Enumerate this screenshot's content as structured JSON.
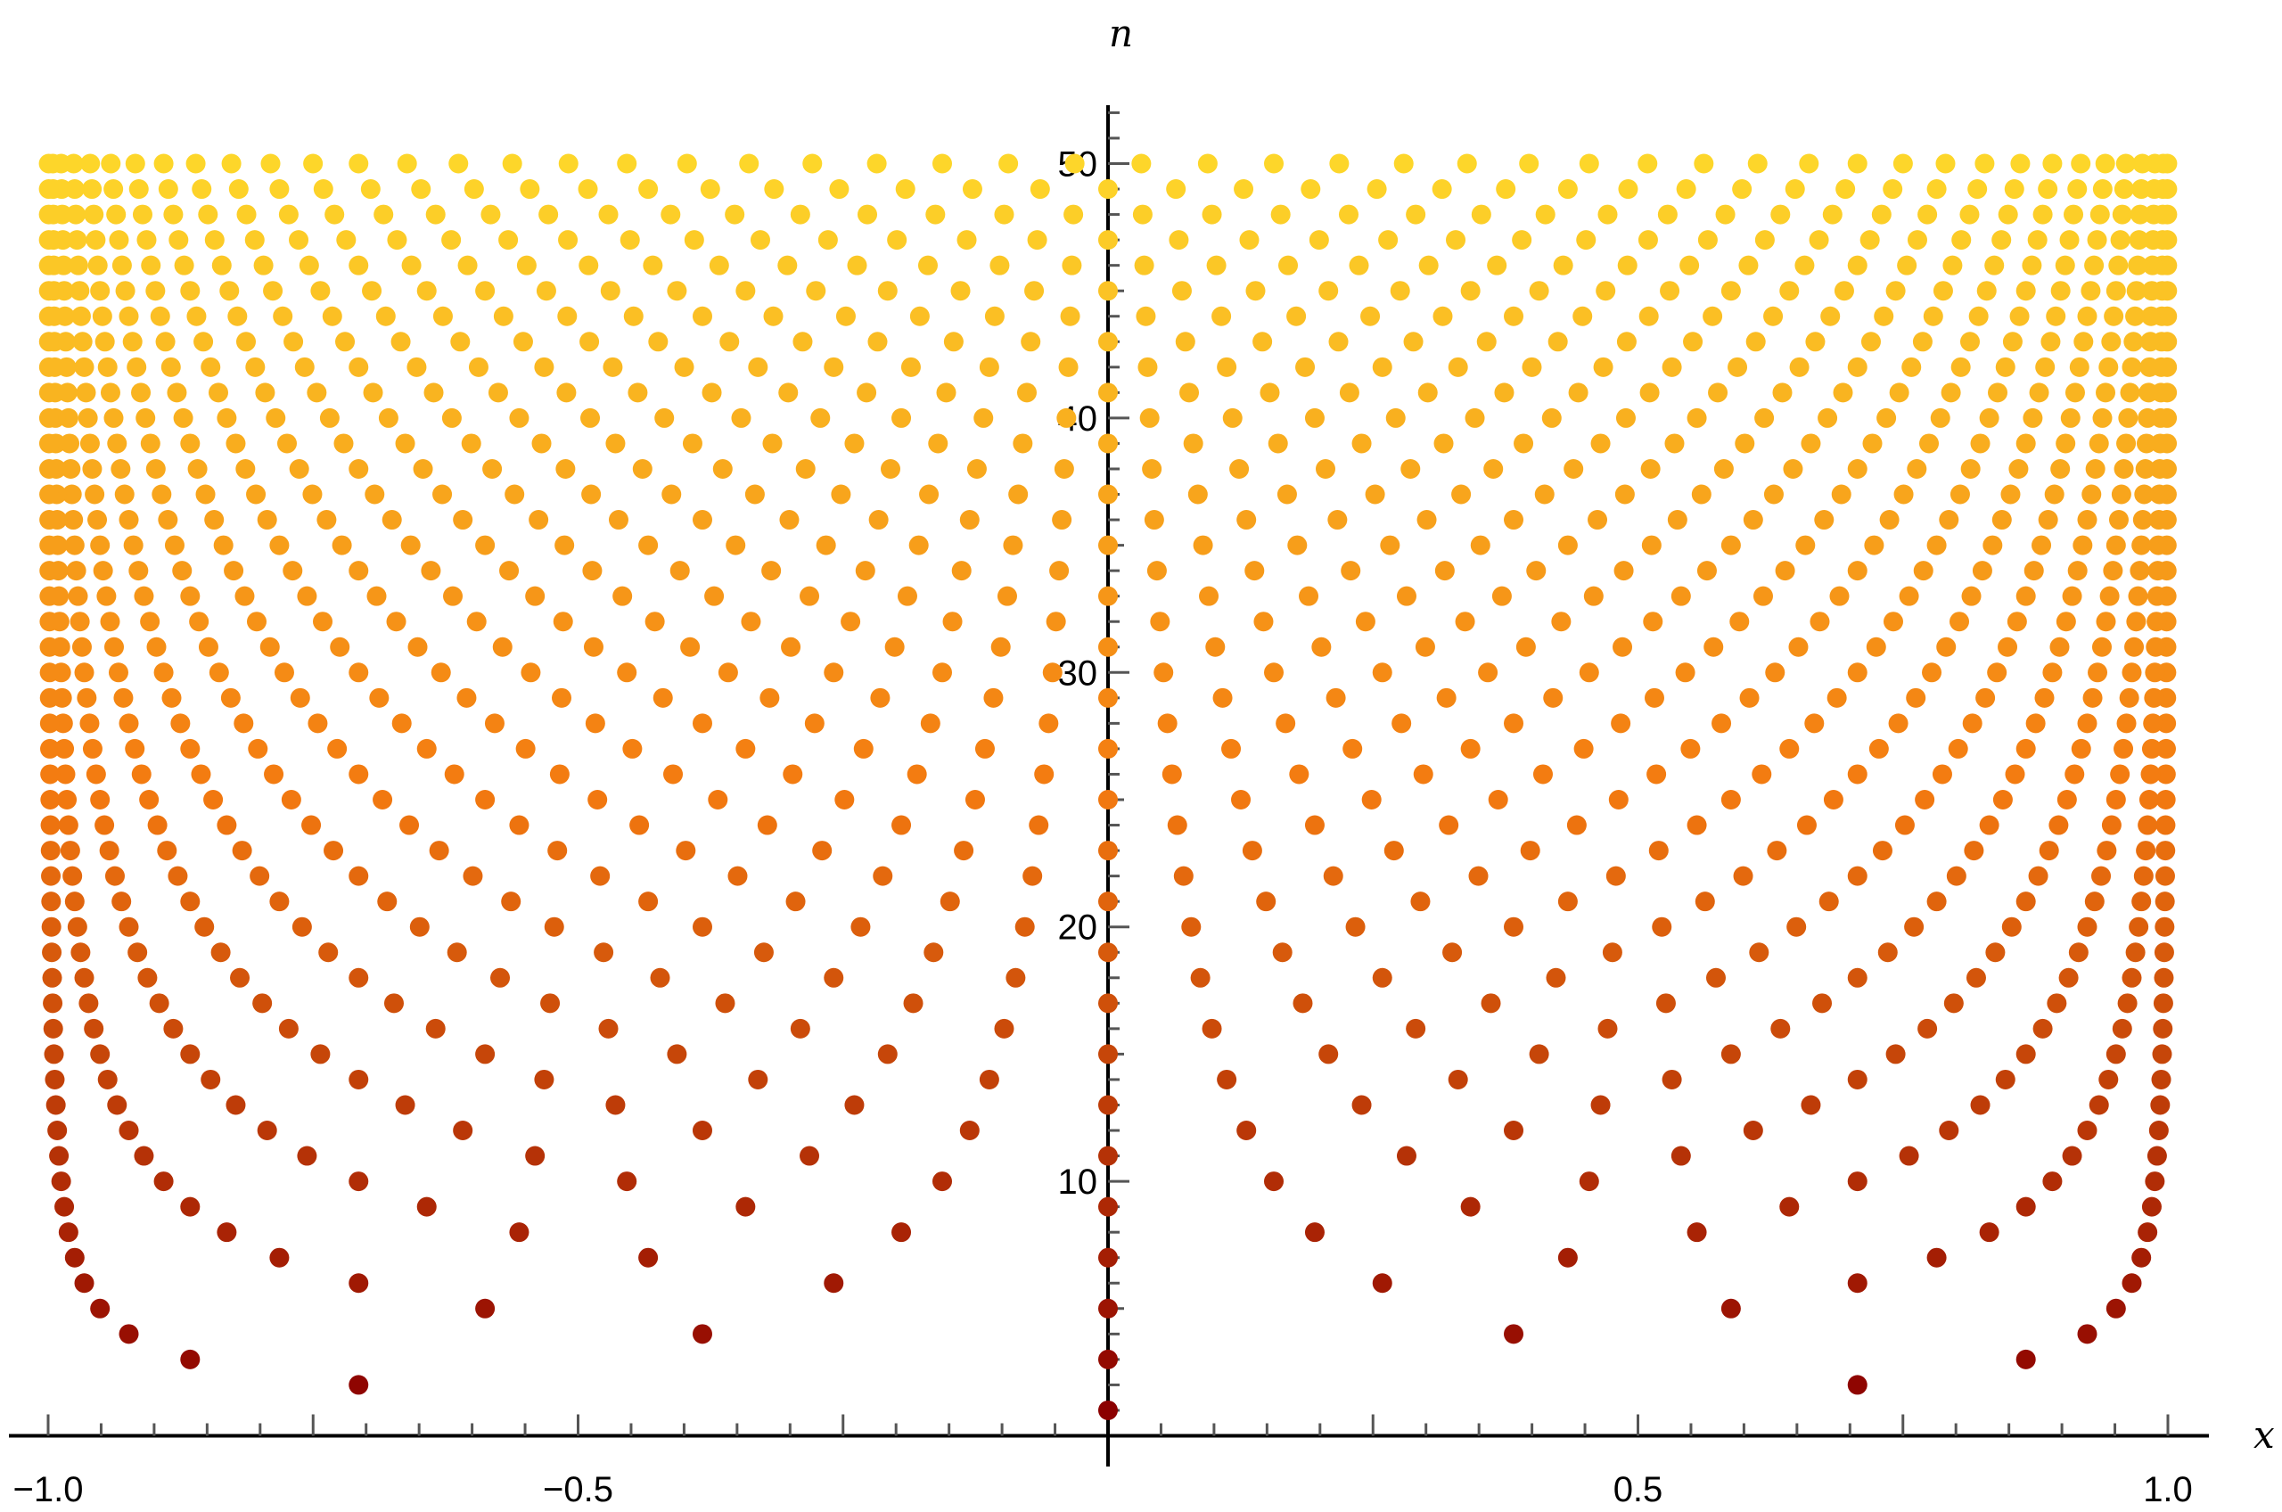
{
  "chart_data": {
    "type": "scatter",
    "title": "",
    "xlabel": "x",
    "ylabel": "n",
    "xlim": [
      -1.0,
      1.0
    ],
    "ylim": [
      0,
      52
    ],
    "x_ticks": [
      "−1.0",
      "−0.5",
      "0.5",
      "1.0"
    ],
    "y_ticks": [
      "10",
      "20",
      "30",
      "40",
      "50"
    ],
    "series_description": "Points (cos((2k-1)π/(2n)), n) for k = 1..n and n = 1..50",
    "n_min": 1,
    "n_max": 50,
    "color_scale": {
      "low": "#8b0000",
      "mid": "#f37a10",
      "high": "#fdd62a"
    },
    "grid": false,
    "legend": "none"
  }
}
